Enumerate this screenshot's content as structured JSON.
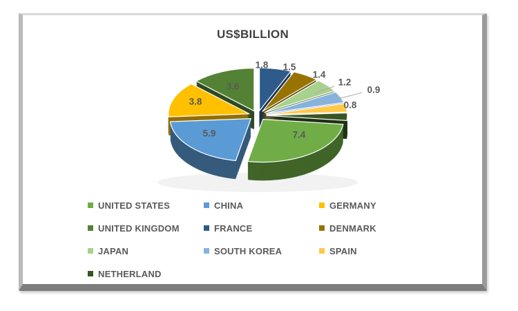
{
  "chart_data": {
    "type": "pie",
    "title": "US$BILLION",
    "style": "3d-exploded-pie",
    "unit": "US$ billion",
    "legend_position": "bottom",
    "direction": "clockwise",
    "start_angle_deg": 0,
    "series": [
      {
        "label": "UNITED STATES",
        "value": 7.4,
        "color": "#70AD47"
      },
      {
        "label": "CHINA",
        "value": 5.9,
        "color": "#5B9BD5"
      },
      {
        "label": "GERMANY",
        "value": 3.8,
        "color": "#FFC000"
      },
      {
        "label": "UNITED KINGDOM",
        "value": 3.6,
        "color": "#548235"
      },
      {
        "label": "FRANCE",
        "value": 1.8,
        "color": "#2E5B8B"
      },
      {
        "label": "DENMARK",
        "value": 1.5,
        "color": "#997300"
      },
      {
        "label": "JAPAN",
        "value": 1.4,
        "color": "#A9D18E"
      },
      {
        "label": "SOUTH KOREA",
        "value": 1.2,
        "color": "#85B3E0"
      },
      {
        "label": "SPAIN",
        "value": 0.9,
        "color": "#FFC845"
      },
      {
        "label": "NETHERLAND",
        "value": 0.8,
        "color": "#375623"
      }
    ],
    "slice_order_clockwise_from_top": [
      "FRANCE",
      "DENMARK",
      "JAPAN",
      "SOUTH KOREA",
      "SPAIN",
      "NETHERLAND",
      "UNITED STATES",
      "CHINA",
      "GERMANY",
      "UNITED KINGDOM"
    ],
    "data_labels": [
      "1.8",
      "1.5",
      "1.4",
      "1.2",
      "0.9",
      "0.8",
      "7.4",
      "5.9",
      "3.8",
      "3.6"
    ],
    "data_label_color": "#595959",
    "leader_line_color": "#ababab"
  }
}
